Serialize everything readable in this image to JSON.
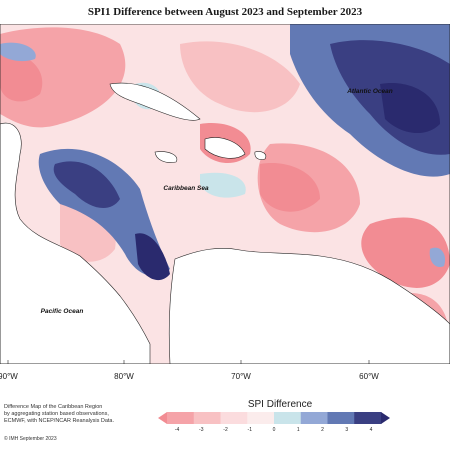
{
  "title": "SPI1 Difference between August 2023 and September 2023",
  "labels": {
    "atlantic": "Atlantic Ocean",
    "caribbean": "Caribbean Sea",
    "pacific": "Pacific Ocean"
  },
  "longitudes": [
    "90°W",
    "80°W",
    "70°W",
    "60°W"
  ],
  "footnote": [
    "Difference Map of the Caribbean Region",
    "by aggregating station based observations,",
    "ECMWF, with NCEP/NCAR Reanalysis Data."
  ],
  "copyright": "© IMH September 2023",
  "legend": {
    "title": "SPI Difference",
    "ticks": [
      "-4",
      "-3",
      "-2",
      "-1",
      "0",
      "1",
      "2",
      "3",
      "4"
    ],
    "colors": [
      "#f28c93",
      "#f5a3a8",
      "#f8c1c3",
      "#fbdcde",
      "#fbecec",
      "#c9e4ea",
      "#93a8d6",
      "#6279b4",
      "#3a3f82",
      "#2a2a6e"
    ]
  },
  "colors": {
    "strong_red": "#f28c93",
    "light_red": "#f8c1c3",
    "pale": "#fbecec",
    "light_blue": "#c9e4ea",
    "mid_blue": "#6279b4",
    "dark_blue": "#3a3f82",
    "land": "#ffffff"
  }
}
